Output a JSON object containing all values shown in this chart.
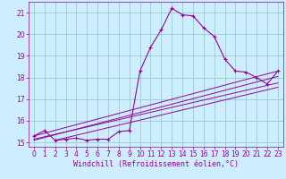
{
  "title": "",
  "xlabel": "Windchill (Refroidissement éolien,°C)",
  "bg_color": "#cceeff",
  "grid_color": "#99cccc",
  "line_color": "#990099",
  "xlim": [
    -0.5,
    23.5
  ],
  "ylim": [
    14.8,
    21.5
  ],
  "yticks": [
    15,
    16,
    17,
    18,
    19,
    20,
    21
  ],
  "xticks": [
    0,
    1,
    2,
    3,
    4,
    5,
    6,
    7,
    8,
    9,
    10,
    11,
    12,
    13,
    14,
    15,
    16,
    17,
    18,
    19,
    20,
    21,
    22,
    23
  ],
  "series": [
    [
      0,
      15.3
    ],
    [
      1,
      15.55
    ],
    [
      2,
      15.1
    ],
    [
      3,
      15.15
    ],
    [
      4,
      15.2
    ],
    [
      5,
      15.1
    ],
    [
      6,
      15.15
    ],
    [
      7,
      15.15
    ],
    [
      8,
      15.5
    ],
    [
      9,
      15.55
    ],
    [
      10,
      18.3
    ],
    [
      11,
      19.4
    ],
    [
      12,
      20.2
    ],
    [
      13,
      21.2
    ],
    [
      14,
      20.9
    ],
    [
      15,
      20.85
    ],
    [
      16,
      20.3
    ],
    [
      17,
      19.9
    ],
    [
      18,
      18.85
    ],
    [
      19,
      18.3
    ],
    [
      20,
      18.25
    ],
    [
      21,
      18.0
    ],
    [
      22,
      17.7
    ],
    [
      23,
      18.3
    ]
  ],
  "linear_series": [
    [
      [
        0,
        15.3
      ],
      [
        23,
        18.3
      ]
    ],
    [
      [
        0,
        15.1
      ],
      [
        23,
        18.05
      ]
    ],
    [
      [
        0,
        15.15
      ],
      [
        23,
        17.75
      ]
    ],
    [
      [
        2,
        15.1
      ],
      [
        23,
        17.55
      ]
    ]
  ],
  "xlabel_fontsize": 6,
  "tick_labelsize": 5.5
}
